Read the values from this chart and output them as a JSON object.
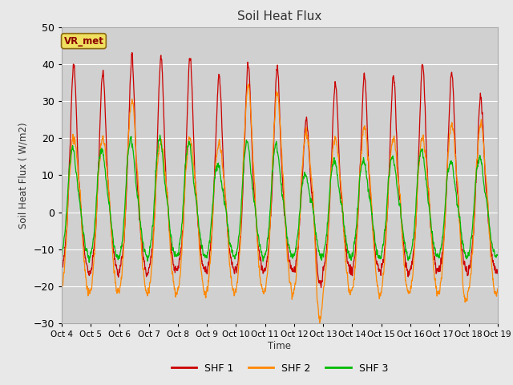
{
  "title": "Soil Heat Flux",
  "ylabel": "Soil Heat Flux ( W/m2)",
  "xlabel": "Time",
  "ylim": [
    -30,
    50
  ],
  "fig_bg": "#e8e8e8",
  "plot_bg": "#d0d0d0",
  "colors": {
    "SHF 1": "#cc0000",
    "SHF 2": "#ff8800",
    "SHF 3": "#00bb00"
  },
  "legend_label": "VR_met",
  "x_tick_labels": [
    "Oct 4",
    "Oct 5",
    "Oct 6",
    "Oct 7",
    "Oct 8",
    "Oct 9",
    "Oct 10",
    "Oct 11",
    "Oct 12",
    "Oct 13",
    "Oct 14",
    "Oct 15",
    "Oct 16",
    "Oct 17",
    "Oct 18",
    "Oct 19"
  ],
  "num_days": 15,
  "ppd": 144,
  "peaks_shf1": [
    40,
    38,
    42,
    42,
    42,
    37,
    40,
    39,
    25,
    35,
    37,
    37,
    40,
    38,
    31
  ],
  "peaks_shf2": [
    20,
    20,
    30,
    19,
    20,
    19,
    34,
    32,
    22,
    20,
    23,
    20,
    20,
    24,
    24
  ],
  "peaks_shf3": [
    17,
    17,
    20,
    20,
    19,
    13,
    19,
    18,
    10,
    14,
    14,
    15,
    17,
    14,
    15
  ],
  "night_shf1": -16,
  "night_shf2": -20,
  "night_shf3": -12,
  "linewidth": 0.9
}
